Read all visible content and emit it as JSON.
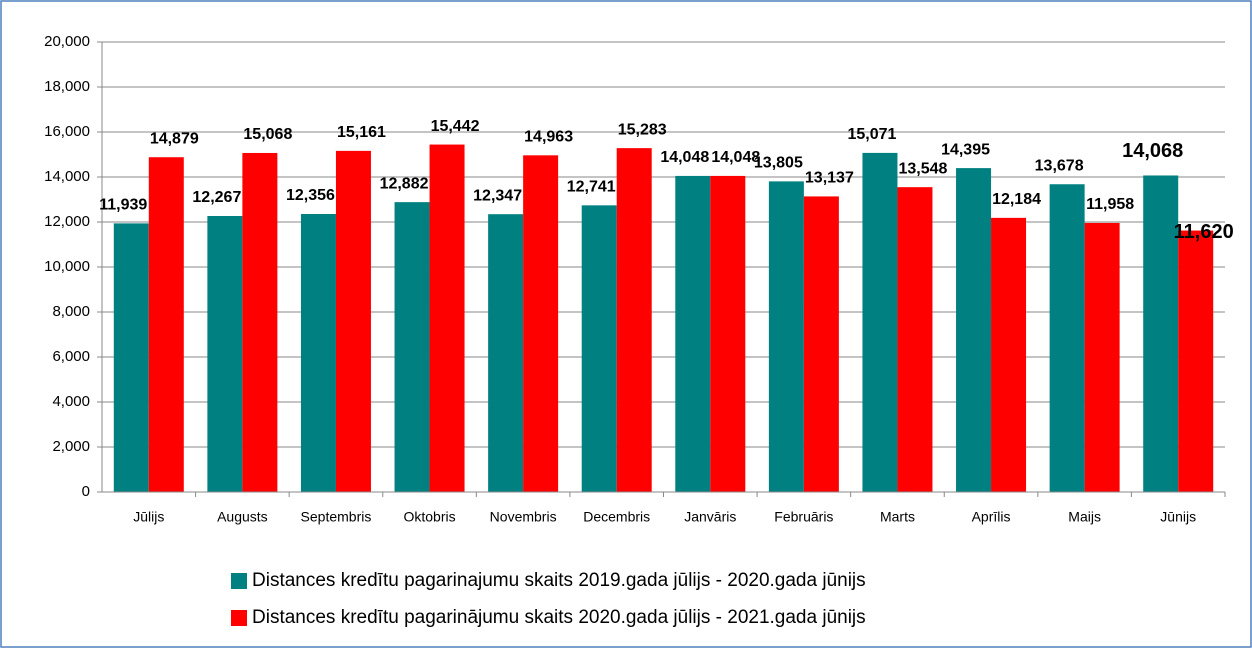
{
  "chart_data": {
    "type": "bar",
    "categories": [
      "Jūlijs",
      "Augusts",
      "Septembris",
      "Oktobris",
      "Novembris",
      "Decembris",
      "Janvāris",
      "Februāris",
      "Marts",
      "Aprīlis",
      "Maijs",
      "Jūnijs"
    ],
    "series": [
      {
        "name": "Distances kredītu pagarinajumu skaits 2019.gada jūlijs - 2020.gada jūnijs",
        "color": "#008080",
        "values": [
          11939,
          12267,
          12356,
          12882,
          12347,
          12741,
          14048,
          13805,
          15071,
          14395,
          13678,
          14068
        ],
        "value_labels": [
          "11,939",
          "12,267",
          "12,356",
          "12,882",
          "12,347",
          "12,741",
          "14,048",
          "13,805",
          "15,071",
          "14,395",
          "13,678",
          "14,068"
        ]
      },
      {
        "name": "Distances kredītu pagarinājumu skaits 2020.gada jūlijs - 2021.gada jūnijs",
        "color": "#ff0000",
        "values": [
          14879,
          15068,
          15161,
          15442,
          14963,
          15283,
          14048,
          13137,
          13548,
          12184,
          11958,
          11620
        ],
        "value_labels": [
          "14,879",
          "15,068",
          "15,161",
          "15,442",
          "14,963",
          "15,283",
          "14,048",
          "13,137",
          "13,548",
          "12,184",
          "11,958",
          "11,620"
        ]
      }
    ],
    "ylim": [
      0,
      20000
    ],
    "yticks": [
      0,
      {
        "value": 2000,
        "label": "2,000"
      },
      {
        "value": 4000,
        "label": "4,000"
      },
      {
        "value": 6000,
        "label": "6,000"
      },
      {
        "value": 8000,
        "label": "8,000"
      },
      {
        "value": 10000,
        "label": "10,000"
      },
      {
        "value": 12000,
        "label": "12,000"
      },
      {
        "value": 14000,
        "label": "14,000"
      },
      {
        "value": 16000,
        "label": "16,000"
      },
      {
        "value": 18000,
        "label": "18,000"
      },
      {
        "value": 20000,
        "label": "20,000"
      }
    ],
    "grid": true,
    "legend": "bottom"
  }
}
